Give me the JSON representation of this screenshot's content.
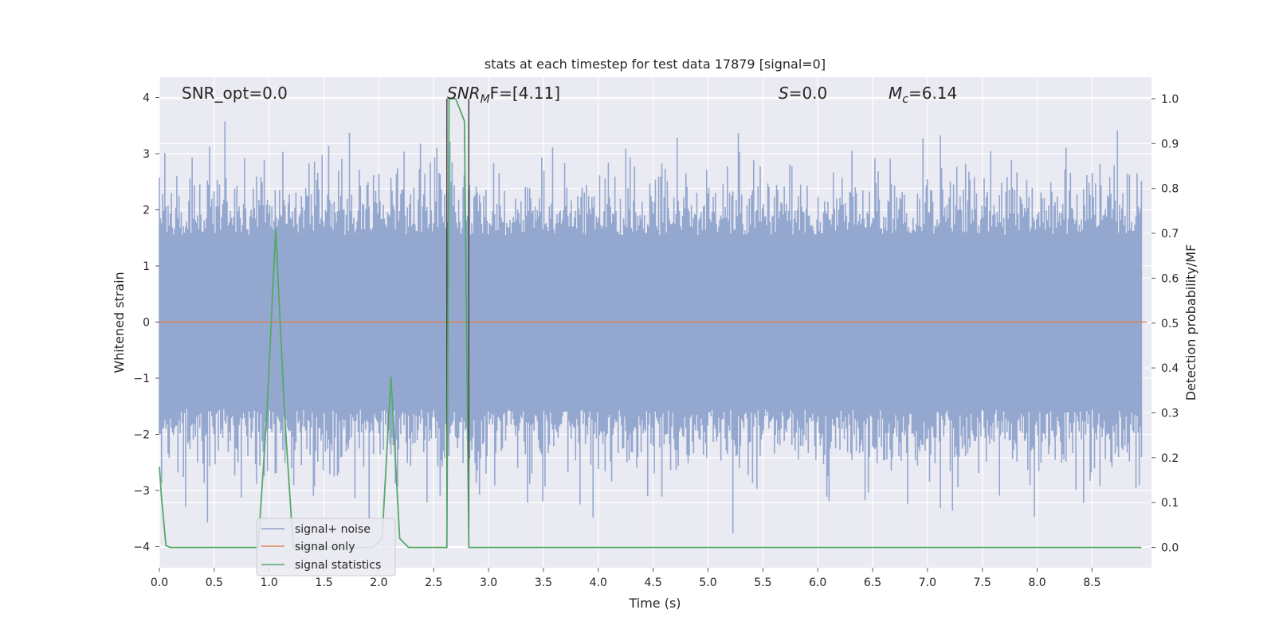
{
  "chart_data": {
    "type": "line",
    "title": "stats at each timestep for test data 17879 [signal=0]",
    "xlabel": "Time (s)",
    "ylabel": "Whitened strain",
    "ylabel_right": "Detection probability/MF",
    "xlim": [
      0.0,
      9.0
    ],
    "ylim": [
      -4.4,
      4.35
    ],
    "ylim_right": [
      -0.047,
      1.047
    ],
    "xticks": [
      "0.0",
      "0.5",
      "1.0",
      "1.5",
      "2.0",
      "2.5",
      "3.0",
      "3.5",
      "4.0",
      "4.5",
      "5.0",
      "5.5",
      "6.0",
      "6.5",
      "7.0",
      "7.5",
      "8.0",
      "8.5"
    ],
    "yticks_left": [
      "4",
      "3",
      "2",
      "1",
      "0",
      "−1",
      "−2",
      "−3",
      "−4"
    ],
    "yticks_right": [
      "1.0",
      "0.9",
      "0.8",
      "0.7",
      "0.6",
      "0.5",
      "0.4",
      "0.3",
      "0.2",
      "0.1",
      "0.0"
    ],
    "grid": true,
    "legend_position": "lower-left",
    "legend": [
      {
        "label": "signal+ noise",
        "color": "#8fa3cc"
      },
      {
        "label": "signal only",
        "color": "#dd8452"
      },
      {
        "label": "signal statistics",
        "color": "#55a868"
      }
    ],
    "annotations": {
      "snr_opt": "SNR_opt=0.0",
      "snr_mf_base": "SNR",
      "snr_mf_sub": "M",
      "snr_mf_rest": "F=[4.11]",
      "s_var": "S",
      "s_rest": "=0.0",
      "mc_base": "M",
      "mc_sub": "c",
      "mc_rest": "=6.14"
    },
    "series": [
      {
        "name": "signal+ noise",
        "axis": "left",
        "description_values": "whitened noise envelope, amplitude roughly within [-4, 4]",
        "samples": 900,
        "seed": 17879,
        "color": "#8fa3cc"
      },
      {
        "name": "signal only",
        "axis": "left",
        "x": [
          0.0,
          9.0
        ],
        "values": [
          0.0,
          0.0
        ],
        "color": "#dd8452"
      },
      {
        "name": "signal statistics",
        "axis": "right",
        "x": [
          0.0,
          0.02,
          0.06,
          0.1,
          0.2,
          0.9,
          0.98,
          1.06,
          1.14,
          1.22,
          1.95,
          2.03,
          2.11,
          2.19,
          2.27,
          2.62,
          2.64,
          2.7,
          2.78,
          2.82,
          2.84,
          2.88,
          2.92,
          8.95
        ],
        "values": [
          0.18,
          0.11,
          0.004,
          0.0,
          0.0,
          0.0,
          0.3,
          0.71,
          0.3,
          0.0,
          0.0,
          0.02,
          0.38,
          0.02,
          0.0,
          0.0,
          1.0,
          1.0,
          0.95,
          0.0,
          0.0,
          0.0,
          0.0,
          0.0
        ],
        "color": "#55a868"
      }
    ],
    "vertical_markers": [
      2.62,
      2.82
    ]
  }
}
